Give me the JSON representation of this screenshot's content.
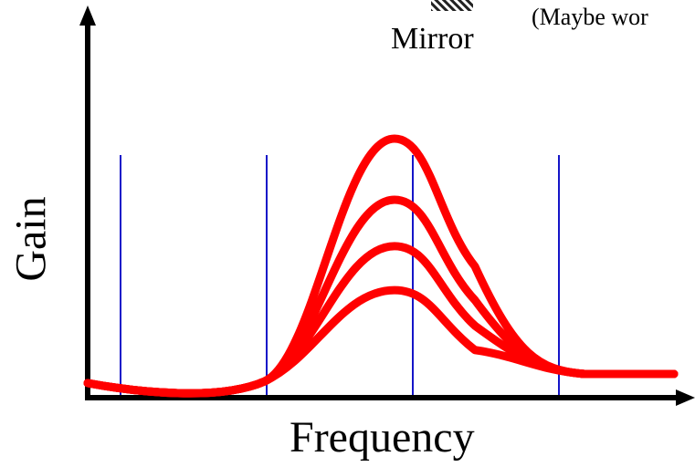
{
  "labels": {
    "mirror": "Mirror",
    "note": "(Maybe wor",
    "x_axis": "Frequency",
    "y_axis": "Gain"
  },
  "colors": {
    "axis": "#000000",
    "markers": "#1515c8",
    "curves": "#ff0000",
    "mirror_hatch": "#222222"
  },
  "icons": [
    "mirror-hatch-icon"
  ],
  "chart_data": {
    "type": "line",
    "xlabel": "Frequency",
    "ylabel": "Gain",
    "grid": false,
    "vertical_markers": [
      0.05,
      0.3,
      0.55,
      0.8
    ],
    "series": [
      {
        "peak": 1.0
      },
      {
        "peak": 0.75
      },
      {
        "peak": 0.56
      },
      {
        "peak": 0.38
      }
    ]
  }
}
